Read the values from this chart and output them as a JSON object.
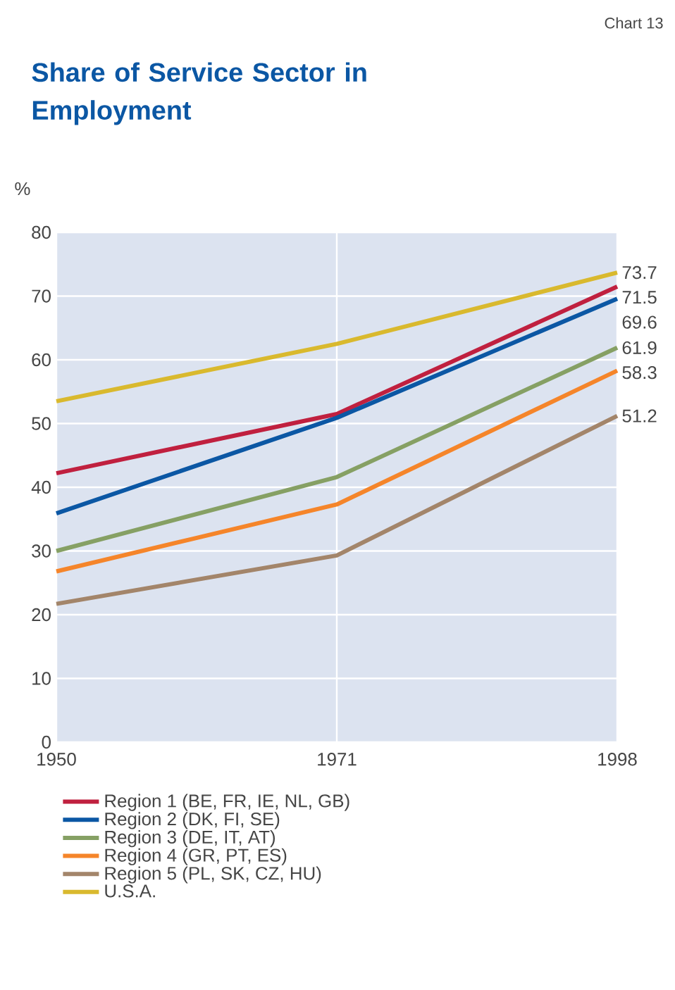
{
  "chart_data": {
    "type": "line",
    "title": "Share of Service Sector in Employment",
    "ylabel": "%",
    "annotations": [
      "Chart 13"
    ],
    "categories": [
      "1950",
      "1971",
      "1998"
    ],
    "ylim": [
      0,
      80
    ],
    "yticks": [
      0,
      10,
      20,
      30,
      40,
      50,
      60,
      70,
      80
    ],
    "grid": true,
    "legend": "bottom",
    "marker": "none",
    "line_style": "solid",
    "series": [
      {
        "name": "Region 1 (BE, FR, IE, NL, GB)",
        "color": "#c0203f",
        "values": [
          42.2,
          51.5,
          71.5
        ],
        "value_labels": [
          null,
          null,
          "71.5"
        ]
      },
      {
        "name": "Region 2 (DK, FI, SE)",
        "color": "#0b57a4",
        "values": [
          35.9,
          50.9,
          69.6
        ],
        "value_labels": [
          null,
          null,
          "69.6"
        ]
      },
      {
        "name": "Region 3 (DE, IT, AT)",
        "color": "#86a064",
        "values": [
          30.0,
          41.6,
          61.9
        ],
        "value_labels": [
          null,
          null,
          "61.9"
        ]
      },
      {
        "name": "Region 4 (GR, PT, ES)",
        "color": "#f5852a",
        "values": [
          26.8,
          37.3,
          58.3
        ],
        "value_labels": [
          null,
          null,
          "58.3"
        ]
      },
      {
        "name": "Region 5 (PL, SK, CZ, HU)",
        "color": "#a3856a",
        "values": [
          21.7,
          29.3,
          51.2
        ],
        "value_labels": [
          null,
          null,
          "51.2"
        ]
      },
      {
        "name": "U.S.A.",
        "color": "#d9b92e",
        "values": [
          53.5,
          62.5,
          73.7
        ],
        "value_labels": [
          null,
          null,
          "73.7"
        ]
      }
    ]
  }
}
